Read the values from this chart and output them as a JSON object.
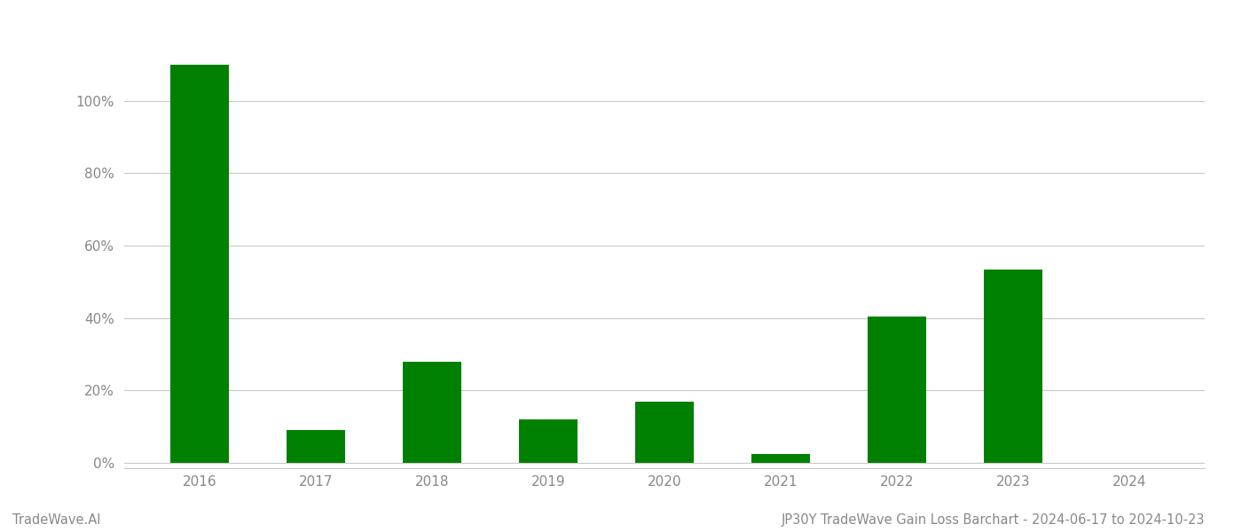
{
  "categories": [
    "2016",
    "2017",
    "2018",
    "2019",
    "2020",
    "2021",
    "2022",
    "2023",
    "2024"
  ],
  "values": [
    1.1,
    0.09,
    0.28,
    0.12,
    0.17,
    0.025,
    0.405,
    0.535,
    0.0
  ],
  "bar_color": "#008000",
  "background_color": "#ffffff",
  "grid_color": "#c8c8c8",
  "ytick_labels": [
    "0%",
    "20%",
    "40%",
    "60%",
    "80%",
    "100%"
  ],
  "ytick_values": [
    0.0,
    0.2,
    0.4,
    0.6,
    0.8,
    1.0
  ],
  "ylim": [
    -0.015,
    1.22
  ],
  "title_text": "JP30Y TradeWave Gain Loss Barchart - 2024-06-17 to 2024-10-23",
  "watermark_text": "TradeWave.AI",
  "title_fontsize": 10.5,
  "watermark_fontsize": 10.5,
  "tick_label_color": "#888888",
  "bar_width": 0.5
}
